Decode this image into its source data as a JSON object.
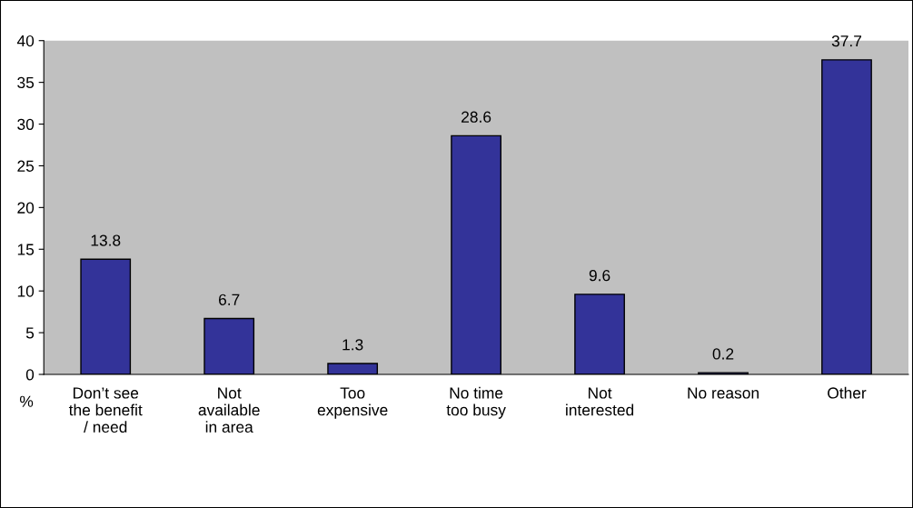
{
  "chart_data": {
    "type": "bar",
    "ylabel": "%",
    "categories": [
      "Don’t see\nthe benefit\n/ need",
      "Not\navailable\nin area",
      "Too\nexpensive",
      "No time\ntoo busy",
      "Not\ninterested",
      "No reason",
      "Other"
    ],
    "values": [
      13.8,
      6.7,
      1.3,
      28.6,
      9.6,
      0.2,
      37.7
    ],
    "color": "#333399",
    "ylim": [
      0,
      40
    ],
    "yticks": [
      0,
      5,
      10,
      15,
      20,
      25,
      30,
      35,
      40
    ],
    "grid": false,
    "data_labels": true
  }
}
